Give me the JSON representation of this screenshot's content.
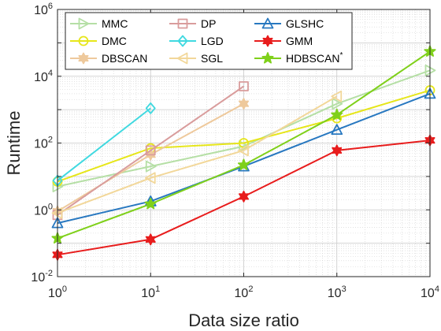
{
  "chart_data": {
    "type": "line",
    "xlabel": "Data size ratio",
    "ylabel": "Runtime",
    "xscale": "log",
    "yscale": "log",
    "xlim": [
      1,
      10000
    ],
    "ylim": [
      0.01,
      1000000
    ],
    "grid": true,
    "minor_grid": true,
    "legend_position": "top-left",
    "legend_columns": 3,
    "x_ticks": [
      {
        "base": "10",
        "exp": "0",
        "value": 1
      },
      {
        "base": "10",
        "exp": "1",
        "value": 10
      },
      {
        "base": "10",
        "exp": "2",
        "value": 100
      },
      {
        "base": "10",
        "exp": "3",
        "value": 1000
      },
      {
        "base": "10",
        "exp": "4",
        "value": 10000
      }
    ],
    "y_ticks": [
      {
        "base": "10",
        "exp": "-2",
        "value": 0.01
      },
      {
        "base": "10",
        "exp": "0",
        "value": 1
      },
      {
        "base": "10",
        "exp": "2",
        "value": 100
      },
      {
        "base": "10",
        "exp": "4",
        "value": 10000
      },
      {
        "base": "10",
        "exp": "6",
        "value": 1000000
      }
    ],
    "series": [
      {
        "name": "MMC",
        "color": "#b5dfa5",
        "marker": "triangle-right",
        "x": [
          1,
          10,
          100,
          1000,
          10000
        ],
        "y": [
          5,
          20,
          80,
          1500,
          15000
        ]
      },
      {
        "name": "DMC",
        "color": "#e6e61a",
        "marker": "circle",
        "x": [
          1,
          10,
          100,
          1000,
          10000
        ],
        "y": [
          7,
          70,
          100,
          550,
          3800
        ]
      },
      {
        "name": "DBSCAN",
        "color": "#eec99c",
        "marker": "hexagram",
        "x": [
          1,
          10,
          100
        ],
        "y": [
          0.9,
          45,
          1500
        ]
      },
      {
        "name": "DP",
        "color": "#d99c9c",
        "marker": "square",
        "x": [
          1,
          10,
          100
        ],
        "y": [
          0.7,
          60,
          5000
        ]
      },
      {
        "name": "LGD",
        "color": "#40d9e0",
        "marker": "diamond",
        "x": [
          1,
          10
        ],
        "y": [
          7.5,
          1100
        ]
      },
      {
        "name": "SGL",
        "color": "#f2d799",
        "marker": "triangle-left",
        "x": [
          1,
          10,
          100,
          1000
        ],
        "y": [
          0.8,
          9,
          60,
          2500
        ]
      },
      {
        "name": "GLSHC",
        "color": "#2878c0",
        "marker": "triangle-up",
        "x": [
          1,
          10,
          100,
          1000,
          10000
        ],
        "y": [
          0.4,
          1.8,
          20,
          250,
          3000
        ]
      },
      {
        "name": "GMM",
        "color": "#e81c1c",
        "marker": "hexagram",
        "x": [
          1,
          10,
          100,
          1000,
          10000
        ],
        "y": [
          0.045,
          0.13,
          2.5,
          60,
          120
        ]
      },
      {
        "name": "HDBSCAN",
        "name_superscript": "*",
        "color": "#7fd01a",
        "marker": "pentagram",
        "x": [
          1,
          10,
          100,
          1000,
          10000
        ],
        "y": [
          0.14,
          1.5,
          22,
          700,
          55000
        ]
      }
    ]
  }
}
